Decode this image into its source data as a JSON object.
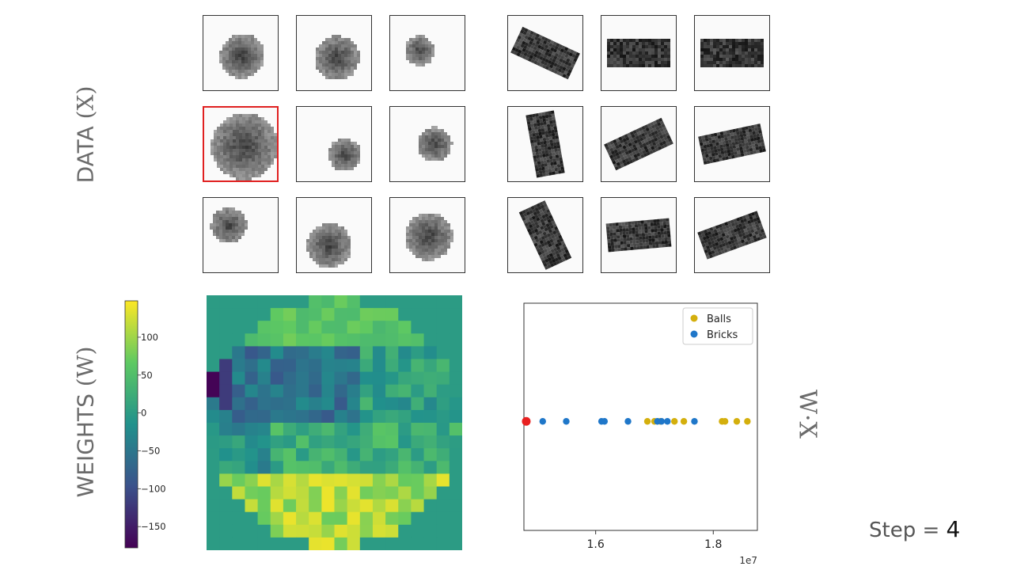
{
  "labels": {
    "data_title": "DATA",
    "data_symbol": "(X)",
    "weights_title": "WEIGHTS",
    "weights_symbol": "(W)",
    "wx_axis": "W·X",
    "step_prefix": "Step = ",
    "step_value": "4"
  },
  "thumbnails": {
    "balls": [
      {
        "col": 0,
        "row": 0,
        "selected": false
      },
      {
        "col": 1,
        "row": 0,
        "selected": false
      },
      {
        "col": 2,
        "row": 0,
        "selected": false
      },
      {
        "col": 0,
        "row": 1,
        "selected": true
      },
      {
        "col": 1,
        "row": 1,
        "selected": false
      },
      {
        "col": 2,
        "row": 1,
        "selected": false
      },
      {
        "col": 0,
        "row": 2,
        "selected": false
      },
      {
        "col": 1,
        "row": 2,
        "selected": false
      },
      {
        "col": 2,
        "row": 2,
        "selected": false
      }
    ],
    "bricks": [
      {
        "col": 0,
        "row": 0,
        "angle": 25
      },
      {
        "col": 1,
        "row": 0,
        "angle": 0
      },
      {
        "col": 2,
        "row": 0,
        "angle": 0
      },
      {
        "col": 0,
        "row": 1,
        "angle": 80
      },
      {
        "col": 1,
        "row": 1,
        "angle": -25
      },
      {
        "col": 2,
        "row": 1,
        "angle": -12
      },
      {
        "col": 0,
        "row": 2,
        "angle": 65
      },
      {
        "col": 1,
        "row": 2,
        "angle": -5
      },
      {
        "col": 2,
        "row": 2,
        "angle": -20
      }
    ]
  },
  "colorbar": {
    "ticks": [
      "100",
      "50",
      "0",
      "−50",
      "−100",
      "−150"
    ],
    "tick_values": [
      100,
      50,
      0,
      -50,
      -100,
      -150
    ],
    "min": -178,
    "max": 148,
    "colors": [
      "#440154",
      "#3b528b",
      "#21918c",
      "#5ec962",
      "#fde725"
    ]
  },
  "chart_data": {
    "type": "scatter",
    "x_exponent_label": "1e7",
    "xticks": [
      1.6,
      1.8
    ],
    "xtick_labels": [
      "1.6",
      "1.8"
    ],
    "xlim": [
      1.478,
      1.875
    ],
    "legend_position": "top-right",
    "series": [
      {
        "name": "Balls",
        "color": "#d4af0d",
        "x": [
          1.688,
          1.7,
          1.71,
          1.734,
          1.75,
          1.815,
          1.82,
          1.84,
          1.858
        ]
      },
      {
        "name": "Bricks",
        "color": "#1f77c9",
        "x": [
          1.51,
          1.55,
          1.61,
          1.615,
          1.655,
          1.705,
          1.712,
          1.722,
          1.768
        ]
      },
      {
        "name": "",
        "color": "#e82020",
        "x": [
          1.482
        ]
      }
    ]
  }
}
